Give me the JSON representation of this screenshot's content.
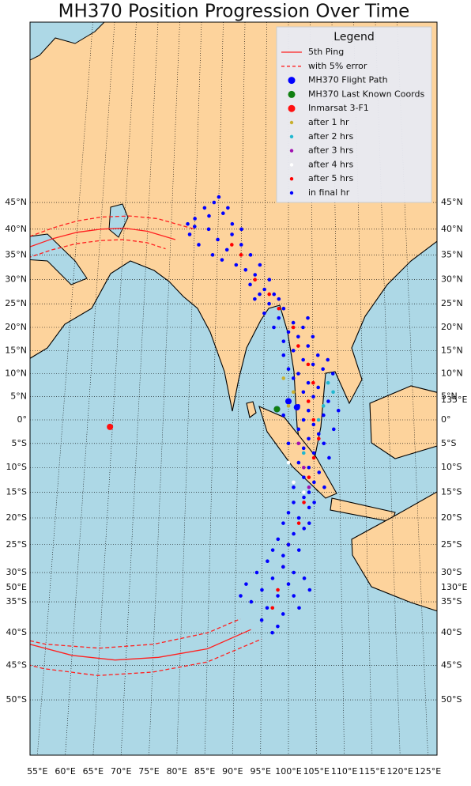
{
  "chart_data": {
    "type": "scatter",
    "title": "MH370 Position Progression Over Time",
    "legend_title": "Legend",
    "legend": "upper right",
    "grid": true,
    "xticks": [
      {
        "value": 55,
        "label": "55°E"
      },
      {
        "value": 60,
        "label": "60°E"
      },
      {
        "value": 65,
        "label": "65°E"
      },
      {
        "value": 70,
        "label": "70°E"
      },
      {
        "value": 75,
        "label": "75°E"
      },
      {
        "value": 80,
        "label": "80°E"
      },
      {
        "value": 85,
        "label": "85°E"
      },
      {
        "value": 90,
        "label": "90°E"
      },
      {
        "value": 95,
        "label": "95°E"
      },
      {
        "value": 100,
        "label": "100°E"
      },
      {
        "value": 105,
        "label": "105°E"
      },
      {
        "value": 110,
        "label": "110°E"
      },
      {
        "value": 115,
        "label": "115°E"
      },
      {
        "value": 120,
        "label": "120°E"
      },
      {
        "value": 125,
        "label": "125°E"
      }
    ],
    "yticks": [
      {
        "value": -50,
        "label": "50°S"
      },
      {
        "value": -45,
        "label": "45°S"
      },
      {
        "value": -40,
        "label": "40°S"
      },
      {
        "value": -35,
        "label": "35°S"
      },
      {
        "value": -30,
        "label": "30°S"
      },
      {
        "value": -25,
        "label": "25°S"
      },
      {
        "value": -20,
        "label": "20°S"
      },
      {
        "value": -15,
        "label": "15°S"
      },
      {
        "value": -10,
        "label": "10°S"
      },
      {
        "value": -5,
        "label": "5°S"
      },
      {
        "value": 0,
        "label": "0°"
      },
      {
        "value": 5,
        "label": "5°N"
      },
      {
        "value": 10,
        "label": "10°N"
      },
      {
        "value": 15,
        "label": "15°N"
      },
      {
        "value": 20,
        "label": "20°N"
      },
      {
        "value": 25,
        "label": "25°N"
      },
      {
        "value": 30,
        "label": "30°N"
      },
      {
        "value": 35,
        "label": "35°N"
      },
      {
        "value": 40,
        "label": "40°N"
      },
      {
        "value": 45,
        "label": "45°N"
      }
    ],
    "edge_labels": [
      "50°E",
      "130°E",
      "135°E"
    ],
    "series": [
      {
        "name": "5th Ping",
        "color": "#ff2020",
        "kind": "line",
        "dash": false,
        "x": [
          45,
          50,
          55,
          60,
          65,
          70,
          76,
          null,
          52,
          60,
          68,
          76,
          85,
          93
        ],
        "y": [
          36.5,
          38.2,
          39.4,
          40,
          40.2,
          39.6,
          38,
          null,
          -41.8,
          -43.5,
          -44.2,
          -43.8,
          -42.5,
          -39.5
        ]
      },
      {
        "name": "with 5% error",
        "color": "#ff2020",
        "kind": "line",
        "dash": true,
        "x": [
          45,
          50,
          55,
          60,
          66,
          72,
          80,
          null,
          45,
          50,
          55,
          60,
          65,
          70,
          74,
          null,
          45,
          55,
          65,
          75,
          85,
          95,
          null,
          45,
          55,
          65,
          75,
          85,
          91
        ],
        "y": [
          38.6,
          40.3,
          41.6,
          42.3,
          42.5,
          42,
          40,
          null,
          34.4,
          36,
          37.2,
          37.8,
          38,
          37.4,
          36.2,
          null,
          -43.5,
          -45.5,
          -46.5,
          -46,
          -44.5,
          -41,
          null,
          -40,
          -41.8,
          -42.4,
          -41.8,
          -40,
          -37.8
        ]
      },
      {
        "name": "MH370 Flight Path",
        "color": "#0000ff",
        "kind": "points",
        "marker": "large",
        "x": [
          101.7,
          100,
          97.7
        ],
        "y": [
          2.7,
          4,
          2.3
        ]
      },
      {
        "name": "MH370 Last Known Coords",
        "color": "#118011",
        "kind": "points",
        "marker": "large",
        "x": [
          97.7
        ],
        "y": [
          2.3
        ]
      },
      {
        "name": "Inmarsat 3-F1",
        "color": "#ff1010",
        "kind": "points",
        "marker": "large",
        "x": [
          64.5
        ],
        "y": [
          -1.5
        ]
      },
      {
        "name": "after 1 hr",
        "color": "#c8b030",
        "kind": "points",
        "marker": "small",
        "x": [
          99,
          101,
          100
        ],
        "y": [
          9,
          6,
          3
        ]
      },
      {
        "name": "after 2 hrs",
        "color": "#20b8d0",
        "kind": "points",
        "marker": "small",
        "x": [
          108,
          107,
          103,
          109,
          106
        ],
        "y": [
          8,
          3,
          -7,
          6,
          0
        ]
      },
      {
        "name": "after 3 hrs",
        "color": "#a010b0",
        "kind": "points",
        "marker": "small",
        "x": [
          103,
          104,
          102
        ],
        "y": [
          -10,
          -14,
          -5
        ]
      },
      {
        "name": "after 4 hrs",
        "color": "#ffffff",
        "kind": "points",
        "marker": "small",
        "x": [
          101,
          103,
          100
        ],
        "y": [
          -13,
          -15,
          -9
        ]
      },
      {
        "name": "after 5 hrs",
        "color": "#ff0000",
        "kind": "points",
        "marker": "small",
        "x": [
          88,
          90,
          93,
          96,
          98,
          101,
          102,
          104,
          105,
          104,
          105,
          106,
          105,
          104,
          103,
          102,
          100,
          99,
          98,
          97
        ],
        "y": [
          37,
          35,
          30,
          27,
          24,
          20,
          16,
          12,
          8,
          4,
          0,
          -4,
          -8,
          -12,
          -17,
          -21,
          -25,
          -29,
          -33,
          -36
        ]
      },
      {
        "name": "in final hr",
        "color": "#0000ff",
        "kind": "points",
        "marker": "small",
        "x": [
          80,
          82,
          84,
          86,
          88,
          83,
          79,
          81,
          85,
          87,
          90,
          92,
          89,
          86,
          84,
          91,
          93,
          88,
          80,
          83,
          85,
          78.5,
          87,
          90,
          94,
          92,
          95,
          97,
          93,
          96,
          99,
          98,
          101,
          95,
          100,
          102,
          99,
          104,
          101,
          103,
          105,
          100,
          106,
          108,
          102,
          97,
          94,
          98,
          103,
          105,
          107,
          109,
          99,
          104,
          96,
          101,
          104,
          106,
          103,
          105,
          108,
          102,
          104,
          107,
          103,
          105,
          102,
          106,
          104,
          107,
          103,
          105,
          108,
          102,
          104,
          106,
          103,
          105,
          101,
          107,
          100,
          109,
          110,
          99,
          104,
          103,
          101,
          104,
          100,
          102,
          99,
          103,
          101,
          98,
          100,
          102,
          97,
          104,
          105,
          99,
          96,
          99,
          101,
          94,
          97,
          100,
          103,
          92,
          95,
          98,
          101,
          93,
          96,
          99,
          102,
          95,
          98,
          91,
          104,
          97
        ],
        "y": [
          42,
          44,
          45,
          43,
          41,
          40,
          39,
          37,
          38,
          36,
          37,
          35,
          33,
          34,
          35,
          32,
          31,
          39,
          40.5,
          42.5,
          46,
          41,
          44,
          40,
          33,
          29,
          28,
          27,
          26,
          25,
          24,
          22,
          21,
          23,
          19,
          18,
          17,
          16,
          15,
          13,
          12,
          11,
          14,
          13,
          10,
          20,
          27,
          26,
          20,
          18,
          11,
          10,
          14,
          22,
          30,
          9,
          8,
          7,
          6,
          5,
          4,
          3,
          2,
          1,
          0,
          -1,
          -2,
          -3,
          -4,
          -5,
          -6,
          -7,
          -8,
          -9,
          -10,
          -11,
          -12,
          -13,
          -14,
          -14,
          -5,
          -2,
          2,
          1,
          -15,
          -16,
          -17,
          -18,
          -19,
          -20,
          -21,
          -22,
          -23,
          -24,
          -25,
          -26,
          -26,
          -21,
          -17,
          -27,
          -28,
          -29,
          -30,
          -30,
          -31,
          -32,
          -31,
          -32,
          -33,
          -34,
          -34,
          -35,
          -36,
          -37,
          -36,
          -38,
          -39,
          -34,
          -33,
          -40
        ]
      }
    ]
  }
}
